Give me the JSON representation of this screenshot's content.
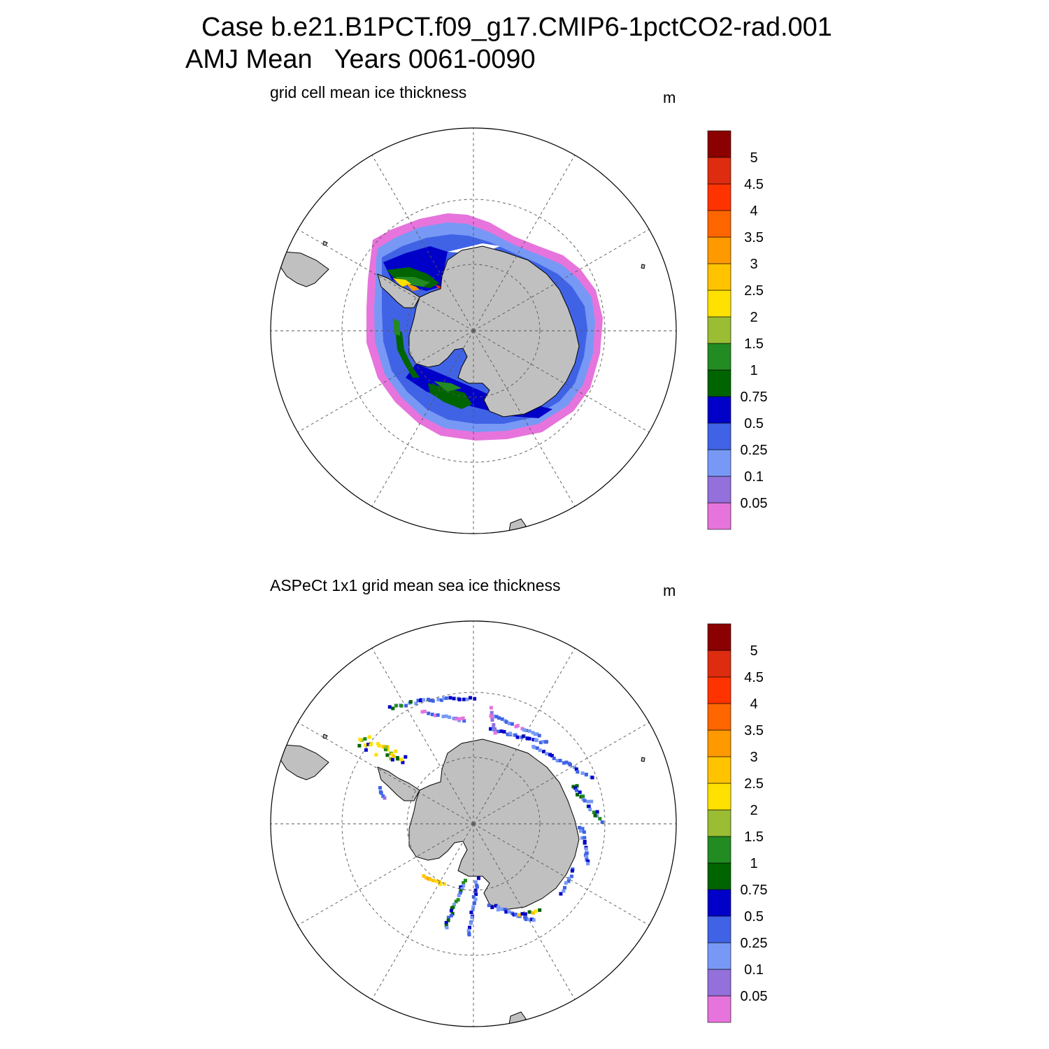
{
  "title_line1": "Case b.e21.B1PCT.f09_g17.CMIP6-1pctCO2-rad.001",
  "title_line2": "AMJ Mean   Years 0061-0090",
  "panels": [
    {
      "subtitle": "grid cell mean ice thickness",
      "units": "m"
    },
    {
      "subtitle": "ASPeCt 1x1 grid mean sea ice thickness",
      "units": "m"
    }
  ],
  "colorbar": {
    "labels": [
      "0.05",
      "0.1",
      "0.25",
      "0.5",
      "0.75",
      "1",
      "1.5",
      "2",
      "2.5",
      "3",
      "3.5",
      "4",
      "4.5",
      "5"
    ],
    "colors": [
      "#e674dc",
      "#9370db",
      "#7799f5",
      "#4063e6",
      "#0000c8",
      "#006400",
      "#228b22",
      "#9abd33",
      "#ffe100",
      "#ffc300",
      "#ff9900",
      "#ff6600",
      "#ff3300",
      "#dd2c10",
      "#8b0000"
    ]
  },
  "map_colors": {
    "land": "#c0c0c0",
    "land_edge": "#000000",
    "grid": "#555555"
  }
}
